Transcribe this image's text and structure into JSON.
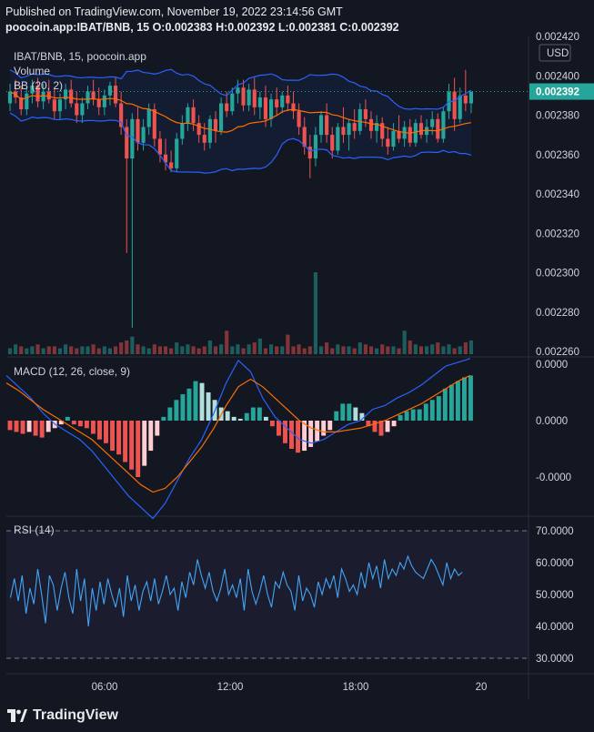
{
  "header": {
    "line1": "Published on TradingView.com, November 19, 2022 23:14:56 GMT",
    "line2": "poocoin.app:IBAT/BNB, 15  O:0.002383  H:0.002392  L:0.002381  C:0.002392"
  },
  "footer": {
    "brand": "TradingView"
  },
  "colors": {
    "up": "#26a69a",
    "down": "#ef5350",
    "bb": "#2962ff",
    "basis": "#ff6d00",
    "macd": "#2962ff",
    "signal": "#ff6d00",
    "rsi": "#2962ff",
    "background": "#131722"
  },
  "chart_data": [
    {
      "type": "candlestick",
      "legend": [
        "IBAT/BNB, 15, poocoin.app",
        "Volume",
        "BB (20, 2)"
      ],
      "currency": "USD",
      "ylim": [
        0.00226,
        0.00242
      ],
      "yticks": [
        "0.002420",
        "0.002400",
        "0.002380",
        "0.002360",
        "0.002340",
        "0.002320",
        "0.002300",
        "0.002280",
        "0.002260"
      ],
      "last_price": "0.002392",
      "xticks": [
        "06:00",
        "12:00",
        "18:00",
        "20"
      ],
      "xtick_hours": [
        6,
        12,
        18,
        24
      ],
      "ohlc": [
        [
          0.002386,
          0.002396,
          0.002382,
          0.002392
        ],
        [
          0.002392,
          0.002398,
          0.002386,
          0.002389
        ],
        [
          0.002389,
          0.002395,
          0.00238,
          0.002383
        ],
        [
          0.002383,
          0.002394,
          0.00238,
          0.002391
        ],
        [
          0.002391,
          0.002398,
          0.002386,
          0.002395
        ],
        [
          0.002395,
          0.002399,
          0.002384,
          0.002387
        ],
        [
          0.002387,
          0.002396,
          0.002383,
          0.002392
        ],
        [
          0.002392,
          0.002398,
          0.002386,
          0.002388
        ],
        [
          0.002388,
          0.002394,
          0.002378,
          0.002382
        ],
        [
          0.002382,
          0.002391,
          0.002378,
          0.002388
        ],
        [
          0.002388,
          0.002396,
          0.002383,
          0.002393
        ],
        [
          0.002393,
          0.002398,
          0.002384,
          0.002386
        ],
        [
          0.002386,
          0.002392,
          0.002376,
          0.00238
        ],
        [
          0.00238,
          0.002389,
          0.002376,
          0.002386
        ],
        [
          0.002386,
          0.002395,
          0.002383,
          0.002392
        ],
        [
          0.002392,
          0.002398,
          0.002385,
          0.002388
        ],
        [
          0.002388,
          0.002394,
          0.00238,
          0.002384
        ],
        [
          0.002384,
          0.002393,
          0.00238,
          0.00239
        ],
        [
          0.00239,
          0.002397,
          0.002385,
          0.002395
        ],
        [
          0.002395,
          0.002399,
          0.002384,
          0.002386
        ],
        [
          0.002386,
          0.002392,
          0.00237,
          0.002374
        ],
        [
          0.002374,
          0.002378,
          0.00231,
          0.002358
        ],
        [
          0.002358,
          0.002381,
          0.002272,
          0.002378
        ],
        [
          0.002378,
          0.002384,
          0.002362,
          0.002366
        ],
        [
          0.002366,
          0.002378,
          0.002362,
          0.002374
        ],
        [
          0.002374,
          0.002386,
          0.00237,
          0.002383
        ],
        [
          0.002383,
          0.002386,
          0.002364,
          0.002368
        ],
        [
          0.002368,
          0.002372,
          0.002356,
          0.00236
        ],
        [
          0.00236,
          0.002368,
          0.002352,
          0.002356
        ],
        [
          0.002356,
          0.002362,
          0.002351,
          0.002353
        ],
        [
          0.002353,
          0.002371,
          0.002351,
          0.002368
        ],
        [
          0.002368,
          0.00238,
          0.002365,
          0.002376
        ],
        [
          0.002376,
          0.002386,
          0.002372,
          0.002384
        ],
        [
          0.002384,
          0.002388,
          0.002372,
          0.002376
        ],
        [
          0.002376,
          0.00238,
          0.002366,
          0.00237
        ],
        [
          0.00237,
          0.002376,
          0.002362,
          0.002366
        ],
        [
          0.002366,
          0.00238,
          0.002363,
          0.002378
        ],
        [
          0.002378,
          0.002382,
          0.002366,
          0.002372
        ],
        [
          0.002372,
          0.002389,
          0.00237,
          0.002386
        ],
        [
          0.002386,
          0.002392,
          0.002379,
          0.002382
        ],
        [
          0.002382,
          0.002394,
          0.00238,
          0.002391
        ],
        [
          0.002391,
          0.002398,
          0.002386,
          0.002394
        ],
        [
          0.002394,
          0.002398,
          0.002382,
          0.002385
        ],
        [
          0.002385,
          0.002396,
          0.002382,
          0.002393
        ],
        [
          0.002393,
          0.002399,
          0.00238,
          0.002384
        ],
        [
          0.002384,
          0.002392,
          0.002378,
          0.002389
        ],
        [
          0.002389,
          0.002395,
          0.002374,
          0.002378
        ],
        [
          0.002378,
          0.002391,
          0.002374,
          0.002388
        ],
        [
          0.002388,
          0.002394,
          0.00238,
          0.002384
        ],
        [
          0.002384,
          0.002392,
          0.002381,
          0.00239
        ],
        [
          0.00239,
          0.002395,
          0.002382,
          0.002386
        ],
        [
          0.002386,
          0.002392,
          0.002378,
          0.002382
        ],
        [
          0.002382,
          0.002386,
          0.00237,
          0.002374
        ],
        [
          0.002374,
          0.002379,
          0.00236,
          0.002364
        ],
        [
          0.002364,
          0.00237,
          0.002348,
          0.002358
        ],
        [
          0.002358,
          0.002374,
          0.002354,
          0.00237
        ],
        [
          0.00237,
          0.002382,
          0.002366,
          0.00238
        ],
        [
          0.00238,
          0.002386,
          0.002366,
          0.00237
        ],
        [
          0.00237,
          0.002374,
          0.002358,
          0.002362
        ],
        [
          0.002362,
          0.002376,
          0.00236,
          0.002374
        ],
        [
          0.002374,
          0.002384,
          0.002366,
          0.00237
        ],
        [
          0.00237,
          0.002378,
          0.002362,
          0.002376
        ],
        [
          0.002376,
          0.002383,
          0.002368,
          0.002372
        ],
        [
          0.002372,
          0.002386,
          0.00237,
          0.002383
        ],
        [
          0.002383,
          0.002388,
          0.002374,
          0.002378
        ],
        [
          0.002378,
          0.002382,
          0.002368,
          0.002372
        ],
        [
          0.002372,
          0.00238,
          0.002366,
          0.002376
        ],
        [
          0.002376,
          0.002379,
          0.002364,
          0.002368
        ],
        [
          0.002368,
          0.002374,
          0.00236,
          0.002364
        ],
        [
          0.002364,
          0.002376,
          0.002362,
          0.002372
        ],
        [
          0.002372,
          0.00238,
          0.002366,
          0.002368
        ],
        [
          0.002368,
          0.002377,
          0.002364,
          0.002374
        ],
        [
          0.002374,
          0.002378,
          0.002364,
          0.002366
        ],
        [
          0.002366,
          0.002378,
          0.002364,
          0.002376
        ],
        [
          0.002376,
          0.00238,
          0.002368,
          0.00237
        ],
        [
          0.00237,
          0.002378,
          0.002366,
          0.002374
        ],
        [
          0.002374,
          0.002382,
          0.00237,
          0.002378
        ],
        [
          0.002378,
          0.002381,
          0.002366,
          0.002368
        ],
        [
          0.002368,
          0.002384,
          0.002366,
          0.002382
        ],
        [
          0.002382,
          0.002396,
          0.002378,
          0.002392
        ],
        [
          0.002392,
          0.002399,
          0.002372,
          0.002378
        ],
        [
          0.002378,
          0.002394,
          0.002376,
          0.00239
        ],
        [
          0.00239,
          0.002403,
          0.002382,
          0.002386
        ],
        [
          0.002386,
          0.002392,
          0.002381,
          0.002392
        ]
      ],
      "volume": [
        3,
        5,
        4,
        3,
        4,
        5,
        3,
        4,
        4,
        3,
        5,
        4,
        3,
        4,
        4,
        5,
        3,
        4,
        3,
        4,
        6,
        7,
        9,
        5,
        4,
        3,
        5,
        4,
        4,
        3,
        6,
        4,
        5,
        4,
        3,
        4,
        7,
        4,
        5,
        12,
        4,
        5,
        3,
        5,
        6,
        8,
        3,
        5,
        4,
        4,
        10,
        4,
        5,
        3,
        4,
        42,
        4,
        6,
        3,
        5,
        4,
        4,
        3,
        6,
        5,
        4,
        3,
        5,
        4,
        4,
        3,
        12,
        7,
        5,
        4,
        4,
        5,
        6,
        4,
        5,
        3,
        4,
        6,
        7
      ],
      "volume_dir": [
        1,
        1,
        0,
        1,
        1,
        0,
        1,
        0,
        0,
        1,
        1,
        0,
        0,
        1,
        1,
        0,
        0,
        1,
        1,
        0,
        0,
        0,
        1,
        0,
        1,
        1,
        0,
        0,
        0,
        0,
        1,
        1,
        1,
        0,
        0,
        0,
        1,
        0,
        1,
        0,
        1,
        1,
        0,
        1,
        0,
        1,
        0,
        1,
        0,
        1,
        0,
        0,
        0,
        0,
        0,
        1,
        1,
        0,
        0,
        1,
        0,
        1,
        0,
        1,
        0,
        0,
        1,
        0,
        0,
        1,
        0,
        1,
        0,
        1,
        0,
        1,
        1,
        0,
        1,
        1,
        0,
        1,
        0,
        1
      ]
    },
    {
      "type": "macd",
      "legend": "MACD (12, 26, close, 9)",
      "ylim": [
        -3e-06,
        3e-06
      ],
      "yticks": [
        "0.0000",
        "0.0000",
        "-0.0000"
      ],
      "histogram": [
        -0.25,
        -0.3,
        -0.35,
        -0.3,
        -0.4,
        -0.45,
        -0.3,
        -0.2,
        -0.1,
        0.1,
        -0.1,
        -0.15,
        -0.2,
        -0.35,
        -0.5,
        -0.6,
        -0.8,
        -0.9,
        -1.1,
        -1.3,
        -1.5,
        -1.2,
        -0.8,
        -0.4,
        0.1,
        0.35,
        0.55,
        0.7,
        0.85,
        1.05,
        1.0,
        0.75,
        0.55,
        0.35,
        0.25,
        0.1,
        0.05,
        0.2,
        0.35,
        0.35,
        0.1,
        -0.15,
        -0.4,
        -0.6,
        -0.75,
        -0.85,
        -0.8,
        -0.7,
        -0.55,
        -0.4,
        -0.25,
        0.25,
        0.45,
        0.45,
        0.35,
        0.2,
        -0.15,
        -0.3,
        -0.4,
        -0.3,
        -0.15,
        0.15,
        0.25,
        0.3,
        0.3,
        0.45,
        0.55,
        0.65,
        0.85,
        0.95,
        1.05,
        1.15,
        1.2
      ],
      "macd_line": [
        1.2,
        0.9,
        0.6,
        0.2,
        -0.1,
        -0.3,
        -0.5,
        -0.8,
        -1.2,
        -1.6,
        -2.0,
        -2.3,
        -2.6,
        -2.2,
        -1.6,
        -1.0,
        -0.5,
        0.2,
        1.0,
        1.6,
        1.3,
        0.6,
        0.1,
        -0.2,
        -0.5,
        -0.6,
        -0.5,
        -0.3,
        -0.1,
        0.0,
        0.3,
        0.4,
        0.6,
        0.75,
        0.95,
        1.2,
        1.45,
        1.55,
        1.65
      ],
      "signal_line": [
        1.0,
        0.8,
        0.55,
        0.3,
        0.1,
        -0.1,
        -0.3,
        -0.5,
        -0.8,
        -1.1,
        -1.4,
        -1.7,
        -1.9,
        -1.8,
        -1.5,
        -1.1,
        -0.7,
        -0.2,
        0.4,
        0.9,
        1.1,
        0.9,
        0.6,
        0.3,
        0.0,
        -0.2,
        -0.3,
        -0.3,
        -0.25,
        -0.2,
        -0.1,
        0.0,
        0.15,
        0.3,
        0.45,
        0.65,
        0.85,
        1.05,
        1.2
      ]
    },
    {
      "type": "line",
      "legend": "RSI (14)",
      "yticks": [
        "70.0000",
        "60.0000",
        "50.0000",
        "40.0000",
        "30.0000"
      ],
      "ylim": [
        25,
        74
      ],
      "band": [
        30,
        70
      ],
      "values": [
        49,
        55,
        48,
        56,
        44,
        52,
        47,
        58,
        50,
        41,
        56,
        53,
        45,
        52,
        57,
        49,
        44,
        58,
        48,
        55,
        40,
        52,
        45,
        54,
        47,
        55,
        50,
        46,
        52,
        43,
        56,
        48,
        53,
        45,
        51,
        54,
        48,
        55,
        47,
        51,
        56,
        50,
        52,
        45,
        54,
        49,
        57,
        53,
        61,
        56,
        52,
        57,
        51,
        48,
        52,
        58,
        50,
        53,
        49,
        55,
        45,
        58,
        51,
        47,
        51,
        56,
        50,
        46,
        54,
        52,
        57,
        53,
        51,
        45,
        56,
        48,
        52,
        50,
        46,
        54,
        50,
        55,
        52,
        56,
        49,
        58,
        55,
        51,
        53,
        50,
        57,
        52,
        60,
        55,
        59,
        52,
        61,
        55,
        58,
        56,
        60,
        58,
        62,
        59,
        57,
        56,
        55,
        58,
        61,
        59,
        56,
        53,
        60,
        55,
        58,
        56,
        57
      ],
      "x_hour_start": 1.5,
      "x_hour_end": 23.1
    }
  ]
}
